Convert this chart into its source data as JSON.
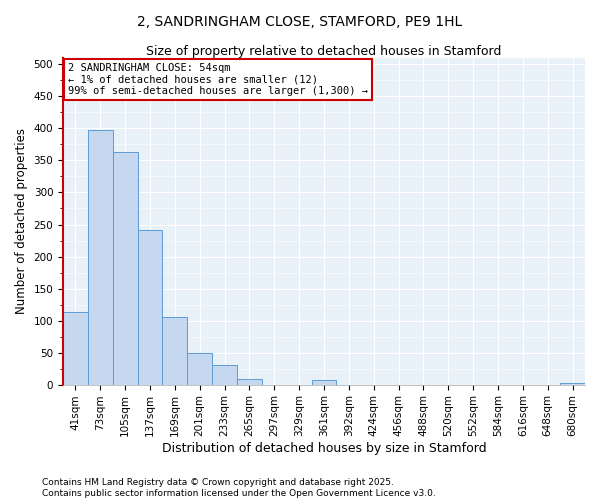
{
  "title": "2, SANDRINGHAM CLOSE, STAMFORD, PE9 1HL",
  "subtitle": "Size of property relative to detached houses in Stamford",
  "xlabel": "Distribution of detached houses by size in Stamford",
  "ylabel": "Number of detached properties",
  "categories": [
    "41sqm",
    "73sqm",
    "105sqm",
    "137sqm",
    "169sqm",
    "201sqm",
    "233sqm",
    "265sqm",
    "297sqm",
    "329sqm",
    "361sqm",
    "392sqm",
    "424sqm",
    "456sqm",
    "488sqm",
    "520sqm",
    "552sqm",
    "584sqm",
    "616sqm",
    "648sqm",
    "680sqm"
  ],
  "values": [
    113,
    397,
    363,
    242,
    105,
    50,
    30,
    8,
    0,
    0,
    7,
    0,
    0,
    0,
    0,
    0,
    0,
    0,
    0,
    0,
    3
  ],
  "bar_color": "#c5d8f0",
  "bar_edge_color": "#5b9bd5",
  "annotation_box_color": "#cc0000",
  "annotation_text": "2 SANDRINGHAM CLOSE: 54sqm\n← 1% of detached houses are smaller (12)\n99% of semi-detached houses are larger (1,300) →",
  "ylim": [
    0,
    510
  ],
  "yticks": [
    0,
    50,
    100,
    150,
    200,
    250,
    300,
    350,
    400,
    450,
    500
  ],
  "footnote1": "Contains HM Land Registry data © Crown copyright and database right 2025.",
  "footnote2": "Contains public sector information licensed under the Open Government Licence v3.0.",
  "bg_color": "#e8f0f8",
  "title_fontsize": 10,
  "subtitle_fontsize": 9,
  "xlabel_fontsize": 9,
  "ylabel_fontsize": 8.5,
  "tick_fontsize": 7.5,
  "annotation_fontsize": 7.5,
  "footnote_fontsize": 6.5
}
